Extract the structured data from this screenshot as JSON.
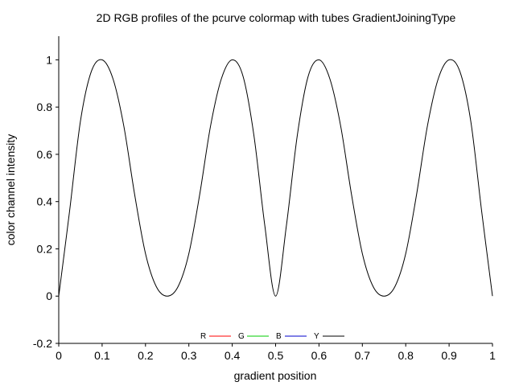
{
  "chart_data": {
    "type": "line",
    "title": "2D RGB profiles of the pcurve colormap with tubes GradientJoiningType",
    "xlabel": "gradient position",
    "ylabel": "color channel intensity",
    "xlim": [
      0,
      1
    ],
    "ylim": [
      -0.2,
      1.1
    ],
    "xticks": [
      "0",
      "0.1",
      "0.2",
      "0.3",
      "0.4",
      "0.5",
      "0.6",
      "0.7",
      "0.8",
      "0.9",
      "1"
    ],
    "yticks": [
      "-0.2",
      "0",
      "0.2",
      "0.4",
      "0.6",
      "0.8",
      "1"
    ],
    "grid": false,
    "legend_position": "bottom-center",
    "series": [
      {
        "name": "R",
        "color": "#ff0000",
        "x": [],
        "y": []
      },
      {
        "name": "G",
        "color": "#00cc00",
        "x": [],
        "y": []
      },
      {
        "name": "B",
        "color": "#0000cc",
        "x": [],
        "y": []
      },
      {
        "name": "Y",
        "color": "#000000",
        "x": [
          0,
          0.025,
          0.05,
          0.075,
          0.1,
          0.125,
          0.15,
          0.175,
          0.2,
          0.225,
          0.25,
          0.275,
          0.3,
          0.325,
          0.35,
          0.375,
          0.4,
          0.425,
          0.45,
          0.475,
          0.5,
          0.525,
          0.55,
          0.575,
          0.6,
          0.625,
          0.65,
          0.675,
          0.7,
          0.725,
          0.75,
          0.775,
          0.8,
          0.825,
          0.85,
          0.875,
          0.9,
          0.925,
          0.95,
          0.975,
          1
        ],
        "y": [
          0,
          0.36,
          0.74,
          0.95,
          1,
          0.92,
          0.72,
          0.43,
          0.18,
          0.04,
          0,
          0.04,
          0.18,
          0.43,
          0.72,
          0.92,
          1,
          0.93,
          0.68,
          0.3,
          0,
          0.3,
          0.68,
          0.93,
          1,
          0.92,
          0.72,
          0.43,
          0.18,
          0.04,
          0,
          0.04,
          0.18,
          0.43,
          0.72,
          0.92,
          1,
          0.95,
          0.74,
          0.36,
          0
        ]
      }
    ]
  }
}
